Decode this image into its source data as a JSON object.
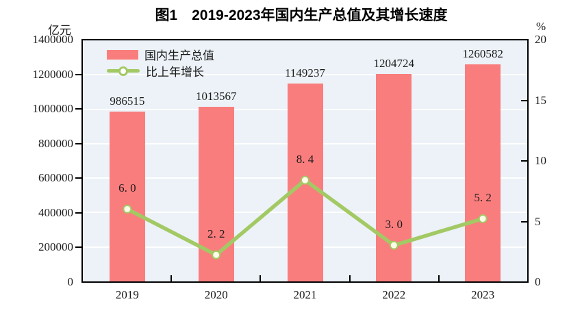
{
  "chart_data": {
    "type": "combo_bar_line",
    "title": "图1　2019-2023年国内生产总值及其增长速度",
    "categories": [
      "2019",
      "2020",
      "2021",
      "2022",
      "2023"
    ],
    "series": [
      {
        "name": "国内生产总值",
        "type": "bar",
        "axis": "left",
        "values": [
          986515,
          1013567,
          1149237,
          1204724,
          1260582
        ],
        "value_labels": [
          "986515",
          "1013567",
          "1149237",
          "1204724",
          "1260582"
        ],
        "color": "#FA7D7D"
      },
      {
        "name": "比上年增长",
        "type": "line",
        "axis": "right",
        "values": [
          6.0,
          2.2,
          8.4,
          3.0,
          5.2
        ],
        "value_labels": [
          "6. 0",
          "2. 2",
          "8. 4",
          "3. 0",
          "5. 2"
        ],
        "color": "#A3C964",
        "marker_fill": "#FDFDEA"
      }
    ],
    "left_axis": {
      "unit": "亿元",
      "min": 0,
      "max": 1400000,
      "step": 200000,
      "tick_labels": [
        "0",
        "200000",
        "400000",
        "600000",
        "800000",
        "1000000",
        "1200000",
        "1400000"
      ]
    },
    "right_axis": {
      "unit": "%",
      "min": 0,
      "max": 20,
      "step": 5,
      "tick_labels": [
        "0",
        "5",
        "10",
        "15",
        "20"
      ]
    },
    "legend": {
      "position": "top-left-inside",
      "items": [
        {
          "label": "国内生产总值",
          "swatch": "bar"
        },
        {
          "label": "比上年增长",
          "swatch": "line-marker"
        }
      ]
    },
    "style": {
      "plot_bg": "#ECF2F7",
      "grid_color": "#FFFFFF",
      "frame_color": "#000000",
      "text_color": "#1A1A1A"
    }
  }
}
